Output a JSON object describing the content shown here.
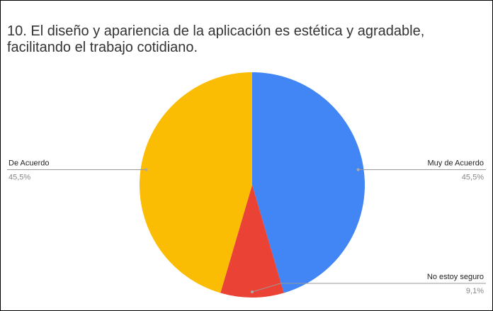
{
  "chart_data": {
    "type": "pie",
    "title": "10. El diseño y apariencia de la aplicación es estética y agradable, facilitando el trabajo cotidiano.",
    "categories": [
      "Muy de Acuerdo",
      "No estoy seguro",
      "De Acuerdo"
    ],
    "values": [
      45.5,
      9.1,
      45.5
    ],
    "value_labels": [
      "45,5%",
      "9,1%",
      "45,5%"
    ],
    "colors": [
      "#4285f4",
      "#ea4335",
      "#fbbc04"
    ]
  }
}
